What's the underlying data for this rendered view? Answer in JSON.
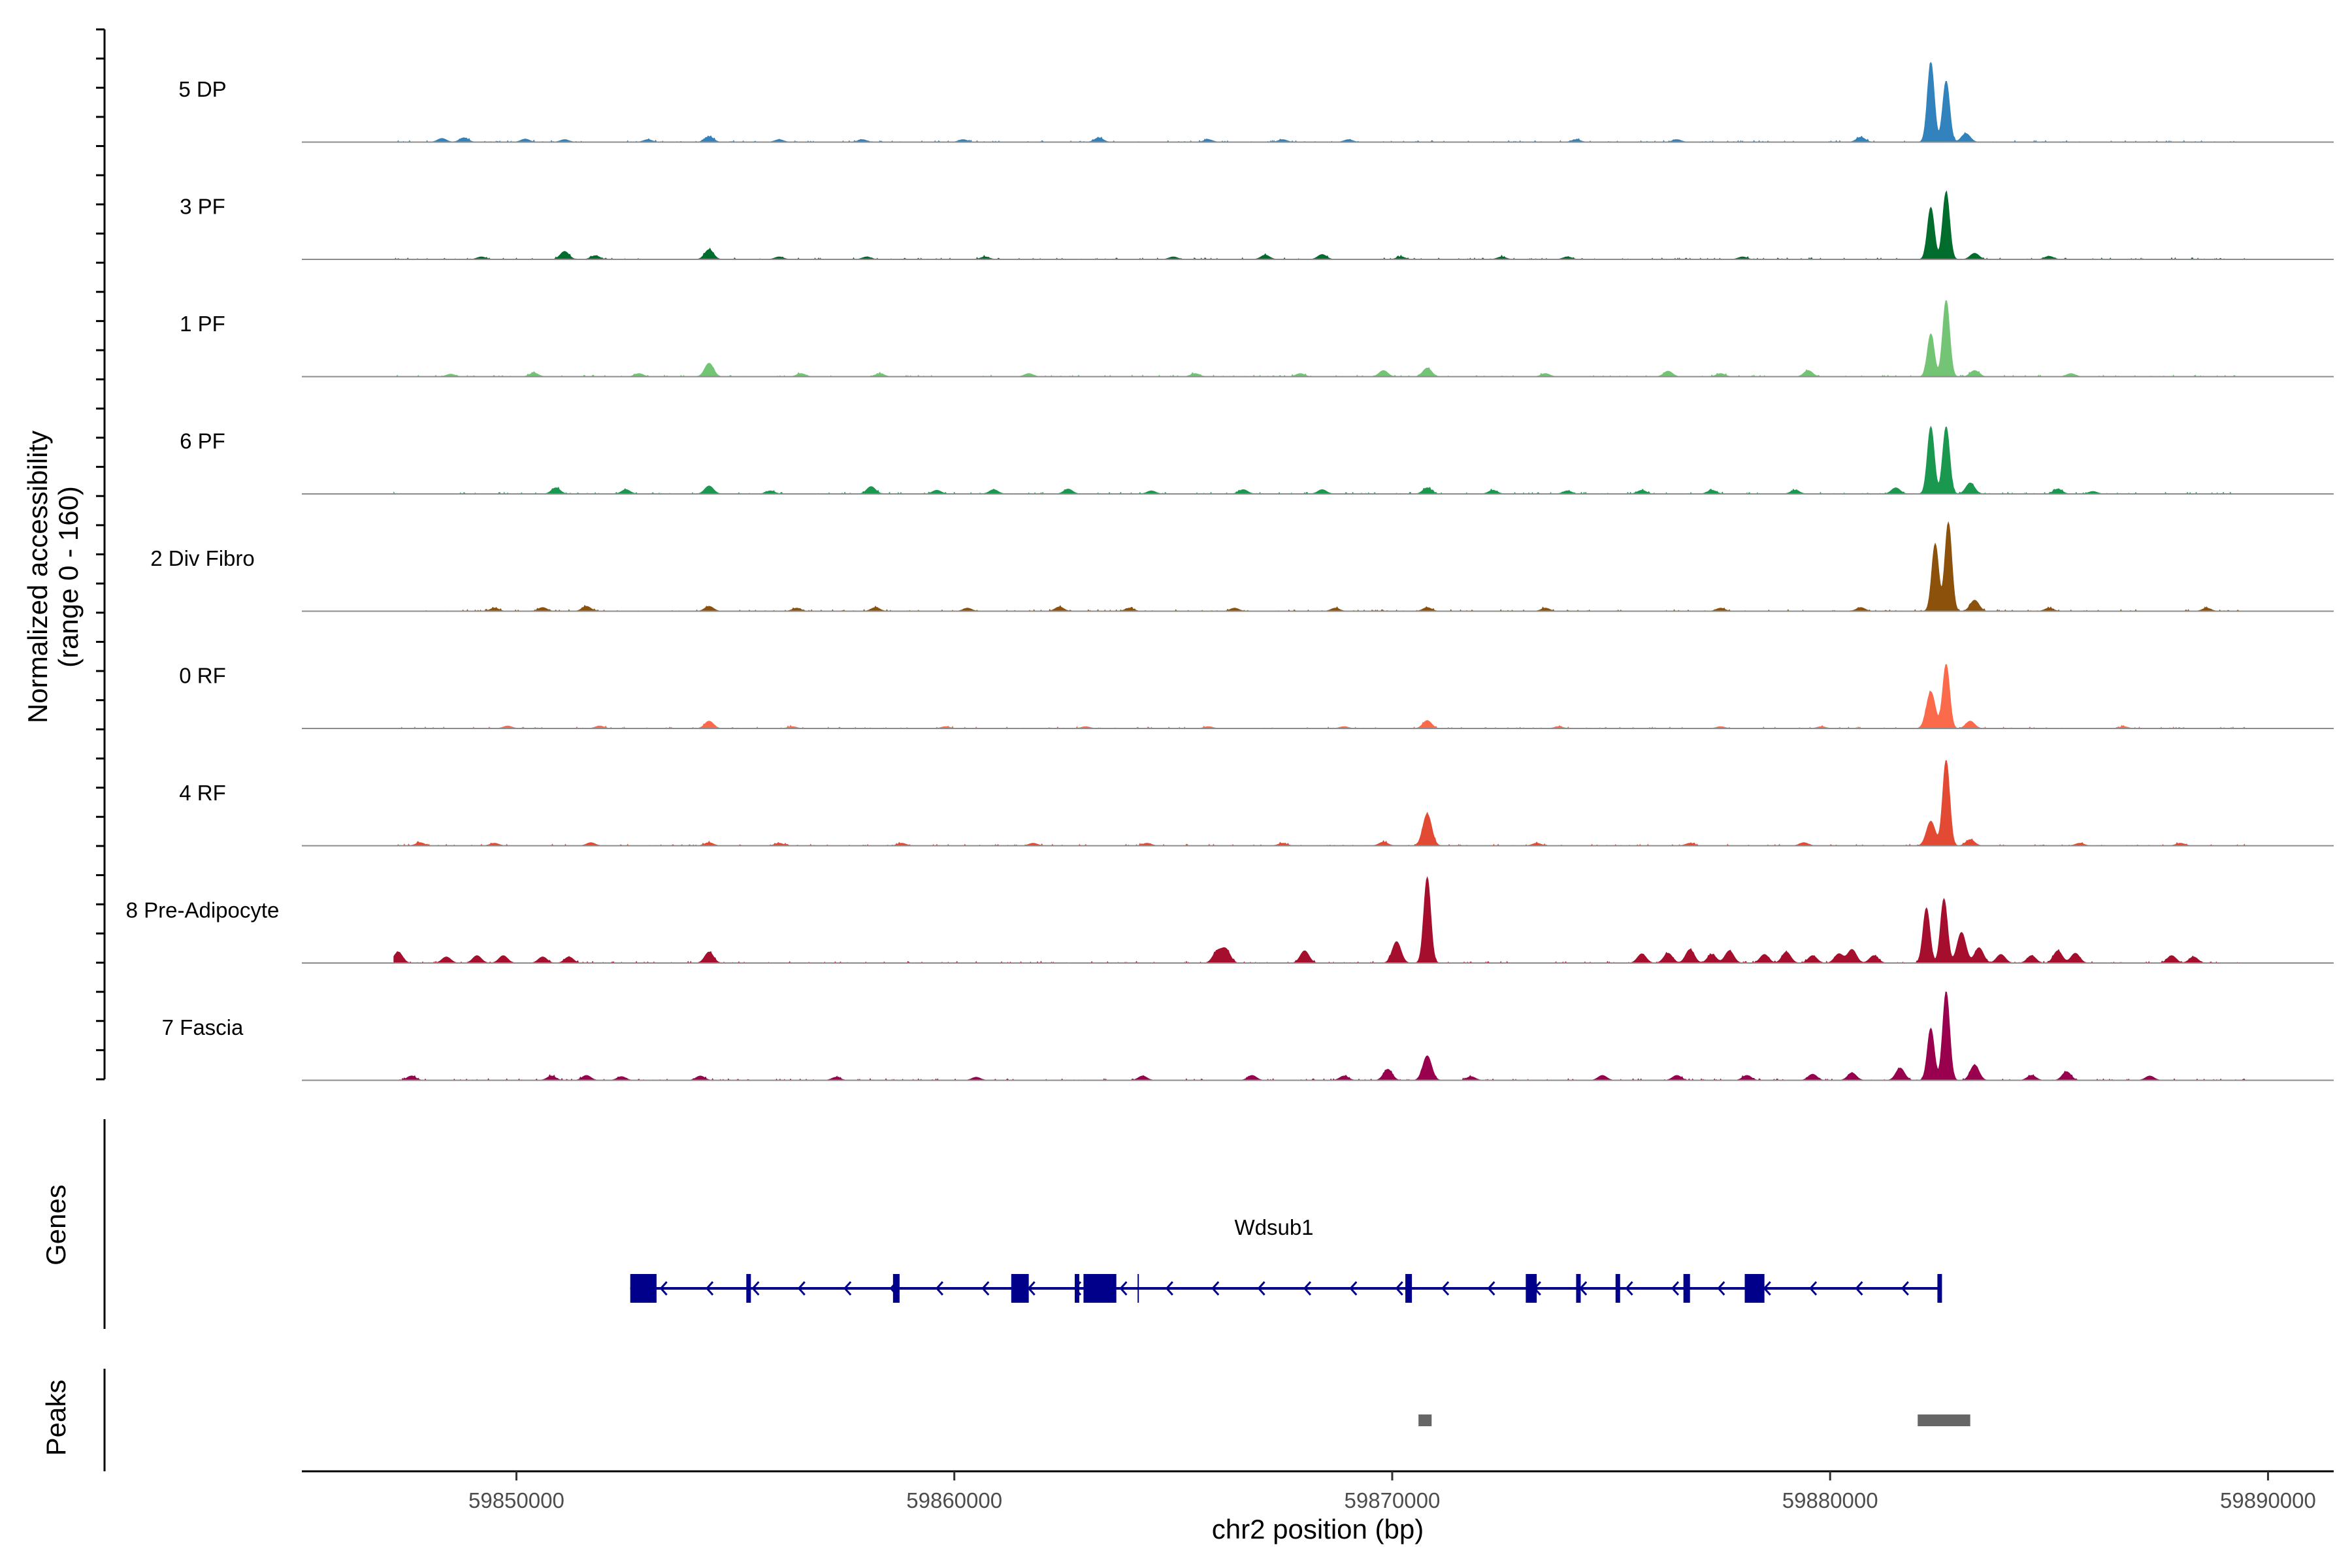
{
  "chart_data": {
    "type": "area",
    "title": "",
    "ylabel": [
      "Normalized accessibility",
      "(range 0 - 160)"
    ],
    "xlabel": "chr2 position (bp)",
    "xlim": [
      59845100,
      59891500
    ],
    "ylim": [
      0,
      160
    ],
    "x_ticks": [
      59850000,
      59860000,
      59870000,
      59880000,
      59890000
    ],
    "x_tick_labels": [
      "59850000",
      "59860000",
      "59870000",
      "59880000",
      "59890000"
    ],
    "grid": false,
    "legend": "none",
    "series": [
      {
        "name": "5 DP",
        "color": "#3182bd",
        "peaks": [
          [
            59848300,
            6
          ],
          [
            59848800,
            7
          ],
          [
            59850200,
            5
          ],
          [
            59851100,
            4
          ],
          [
            59853000,
            4
          ],
          [
            59854400,
            9
          ],
          [
            59856000,
            4
          ],
          [
            59857900,
            4
          ],
          [
            59860200,
            4
          ],
          [
            59863300,
            7
          ],
          [
            59865800,
            4
          ],
          [
            59867500,
            4
          ],
          [
            59869000,
            4
          ],
          [
            59874200,
            4
          ],
          [
            59876500,
            4
          ],
          [
            59880700,
            8
          ],
          [
            59882300,
            130
          ],
          [
            59882650,
            100
          ],
          [
            59883100,
            14
          ]
        ]
      },
      {
        "name": "3 PF",
        "color": "#006d2c",
        "peaks": [
          [
            59849200,
            4
          ],
          [
            59851100,
            13
          ],
          [
            59851800,
            6
          ],
          [
            59854400,
            16
          ],
          [
            59856000,
            4
          ],
          [
            59858000,
            4
          ],
          [
            59860700,
            4
          ],
          [
            59865000,
            4
          ],
          [
            59867100,
            7
          ],
          [
            59868400,
            8
          ],
          [
            59870200,
            4
          ],
          [
            59872500,
            4
          ],
          [
            59874000,
            4
          ],
          [
            59878000,
            4
          ],
          [
            59882300,
            85
          ],
          [
            59882650,
            110
          ],
          [
            59883300,
            10
          ],
          [
            59885000,
            5
          ]
        ]
      },
      {
        "name": "1 PF",
        "color": "#74c476",
        "peaks": [
          [
            59848500,
            4
          ],
          [
            59850400,
            6
          ],
          [
            59852800,
            5
          ],
          [
            59854400,
            22
          ],
          [
            59856500,
            5
          ],
          [
            59858300,
            5
          ],
          [
            59861700,
            5
          ],
          [
            59865500,
            5
          ],
          [
            59867900,
            5
          ],
          [
            59869800,
            10
          ],
          [
            59870800,
            14
          ],
          [
            59873500,
            5
          ],
          [
            59876300,
            9
          ],
          [
            59877500,
            5
          ],
          [
            59879500,
            10
          ],
          [
            59882300,
            70
          ],
          [
            59882650,
            125
          ],
          [
            59883300,
            10
          ],
          [
            59885500,
            5
          ]
        ]
      },
      {
        "name": "6 PF",
        "color": "#1a9850",
        "peaks": [
          [
            59850900,
            10
          ],
          [
            59852500,
            7
          ],
          [
            59854400,
            13
          ],
          [
            59855800,
            5
          ],
          [
            59858100,
            12
          ],
          [
            59859600,
            6
          ],
          [
            59860900,
            7
          ],
          [
            59862600,
            8
          ],
          [
            59864500,
            5
          ],
          [
            59866600,
            7
          ],
          [
            59868400,
            7
          ],
          [
            59870800,
            10
          ],
          [
            59872300,
            6
          ],
          [
            59874000,
            5
          ],
          [
            59875700,
            6
          ],
          [
            59877300,
            6
          ],
          [
            59879200,
            6
          ],
          [
            59881500,
            10
          ],
          [
            59882300,
            110
          ],
          [
            59882650,
            110
          ],
          [
            59883200,
            18
          ],
          [
            59885200,
            8
          ],
          [
            59886000,
            4
          ]
        ]
      },
      {
        "name": "2 Div Fibro",
        "color": "#8c510a",
        "peaks": [
          [
            59849500,
            5
          ],
          [
            59850600,
            6
          ],
          [
            59851600,
            8
          ],
          [
            59854400,
            8
          ],
          [
            59856400,
            5
          ],
          [
            59858200,
            6
          ],
          [
            59860300,
            5
          ],
          [
            59862400,
            7
          ],
          [
            59864000,
            5
          ],
          [
            59866400,
            5
          ],
          [
            59868700,
            5
          ],
          [
            59870800,
            6
          ],
          [
            59873500,
            5
          ],
          [
            59877500,
            5
          ],
          [
            59880700,
            6
          ],
          [
            59882400,
            110
          ],
          [
            59882700,
            145
          ],
          [
            59883300,
            18
          ],
          [
            59885000,
            5
          ],
          [
            59888600,
            5
          ]
        ]
      },
      {
        "name": "0 RF",
        "color": "#fb6a4a",
        "peaks": [
          [
            59849800,
            4
          ],
          [
            59851900,
            4
          ],
          [
            59854400,
            12
          ],
          [
            59856300,
            3
          ],
          [
            59859800,
            3
          ],
          [
            59863000,
            3
          ],
          [
            59865800,
            3
          ],
          [
            59868900,
            3
          ],
          [
            59870800,
            13
          ],
          [
            59873800,
            3
          ],
          [
            59877500,
            3
          ],
          [
            59879800,
            3
          ],
          [
            59882300,
            60
          ],
          [
            59882650,
            105
          ],
          [
            59883200,
            12
          ],
          [
            59886700,
            3
          ]
        ]
      },
      {
        "name": "4 RF",
        "color": "#e34a33",
        "peaks": [
          [
            59847800,
            5
          ],
          [
            59849500,
            4
          ],
          [
            59851700,
            5
          ],
          [
            59854400,
            5
          ],
          [
            59856000,
            4
          ],
          [
            59858800,
            4
          ],
          [
            59861800,
            4
          ],
          [
            59864400,
            4
          ],
          [
            59867500,
            4
          ],
          [
            59869800,
            6
          ],
          [
            59870800,
            52
          ],
          [
            59873300,
            4
          ],
          [
            59876800,
            4
          ],
          [
            59879400,
            5
          ],
          [
            59882300,
            40
          ],
          [
            59882650,
            140
          ],
          [
            59883200,
            10
          ],
          [
            59885700,
            4
          ],
          [
            59888000,
            4
          ]
        ]
      },
      {
        "name": "8 Pre-Adipocyte",
        "color": "#a50f2d",
        "peaks": [
          [
            59847300,
            18
          ],
          [
            59848400,
            10
          ],
          [
            59849100,
            12
          ],
          [
            59849700,
            12
          ],
          [
            59850600,
            10
          ],
          [
            59851200,
            10
          ],
          [
            59854400,
            18
          ],
          [
            59866000,
            18
          ],
          [
            59866200,
            22
          ],
          [
            59868000,
            20
          ],
          [
            59870100,
            35
          ],
          [
            59870800,
            140
          ],
          [
            59875700,
            15
          ],
          [
            59876300,
            16
          ],
          [
            59876800,
            22
          ],
          [
            59877300,
            14
          ],
          [
            59877700,
            20
          ],
          [
            59878500,
            14
          ],
          [
            59879000,
            18
          ],
          [
            59879600,
            12
          ],
          [
            59880200,
            15
          ],
          [
            59880500,
            22
          ],
          [
            59881000,
            12
          ],
          [
            59882200,
            90
          ],
          [
            59882600,
            105
          ],
          [
            59883000,
            50
          ],
          [
            59883400,
            25
          ],
          [
            59883900,
            14
          ],
          [
            59884600,
            12
          ],
          [
            59885200,
            20
          ],
          [
            59885600,
            16
          ],
          [
            59887800,
            12
          ],
          [
            59888300,
            10
          ]
        ]
      },
      {
        "name": "7 Fascia",
        "color": "#99004d",
        "peaks": [
          [
            59847600,
            7
          ],
          [
            59850800,
            7
          ],
          [
            59851600,
            8
          ],
          [
            59852400,
            6
          ],
          [
            59854200,
            7
          ],
          [
            59857300,
            5
          ],
          [
            59860500,
            5
          ],
          [
            59864300,
            7
          ],
          [
            59866800,
            8
          ],
          [
            59868900,
            7
          ],
          [
            59869900,
            18
          ],
          [
            59870800,
            40
          ],
          [
            59871800,
            6
          ],
          [
            59874800,
            8
          ],
          [
            59876500,
            8
          ],
          [
            59878100,
            8
          ],
          [
            59879600,
            10
          ],
          [
            59880500,
            12
          ],
          [
            59881600,
            20
          ],
          [
            59882300,
            85
          ],
          [
            59882650,
            145
          ],
          [
            59883300,
            25
          ],
          [
            59884600,
            8
          ],
          [
            59885400,
            14
          ],
          [
            59887300,
            7
          ]
        ]
      }
    ],
    "genes": {
      "label": "Wdsub1",
      "start": 59852600,
      "end": 59882550,
      "strand": "-",
      "color": "#00008b",
      "exons": [
        [
          59852600,
          59853200
        ],
        [
          59855250,
          59855350
        ],
        [
          59858600,
          59858750
        ],
        [
          59861300,
          59861700
        ],
        [
          59862750,
          59862850
        ],
        [
          59862950,
          59863700
        ],
        [
          59870300,
          59870450
        ],
        [
          59873050,
          59873300
        ],
        [
          59874200,
          59874300
        ],
        [
          59875100,
          59875200
        ],
        [
          59876650,
          59876800
        ],
        [
          59878050,
          59878500
        ],
        [
          59882450,
          59882550
        ]
      ]
    },
    "peak_regions": {
      "color": "#666666",
      "regions": [
        [
          59870600,
          59870900
        ],
        [
          59882000,
          59883200
        ]
      ]
    },
    "panel_titles": {
      "genes": "Genes",
      "peaks": "Peaks"
    }
  }
}
